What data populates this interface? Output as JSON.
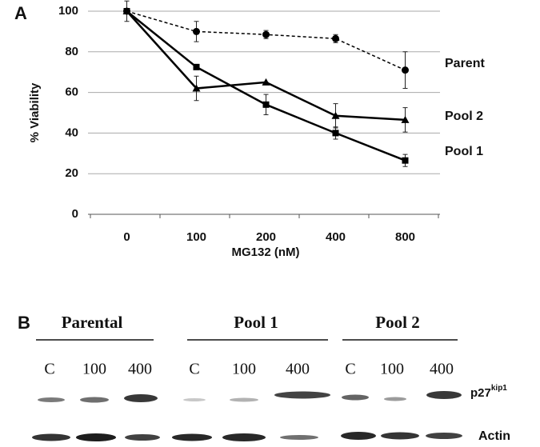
{
  "chart_data": {
    "type": "line",
    "panel": "A",
    "ylabel": "% Viability",
    "xlabel": "MG132 (nM)",
    "categories": [
      "0",
      "100",
      "200",
      "400",
      "800"
    ],
    "ylim": [
      0,
      100
    ],
    "yticks": [
      0,
      20,
      40,
      60,
      80,
      100
    ],
    "grid": true,
    "series": [
      {
        "name": "Parent",
        "color": "#000000",
        "marker": "circle",
        "dashed": true,
        "values": [
          100,
          90,
          88.5,
          86.5,
          71
        ],
        "errors": [
          5,
          5,
          2,
          2,
          9
        ]
      },
      {
        "name": "Pool 2",
        "color": "#000000",
        "marker": "triangle",
        "dashed": false,
        "values": [
          100,
          62,
          65,
          48.5,
          46.5
        ],
        "errors": [
          0,
          6,
          0,
          6,
          6
        ]
      },
      {
        "name": "Pool 1",
        "color": "#000000",
        "marker": "square",
        "dashed": false,
        "values": [
          100,
          72.5,
          54,
          40,
          26.5
        ],
        "errors": [
          0,
          0,
          5,
          3,
          3
        ]
      }
    ]
  },
  "blot": {
    "panel": "B",
    "groups": [
      "Parental",
      "Pool 1",
      "Pool 2"
    ],
    "lanes": [
      "C",
      "100",
      "400",
      "C",
      "100",
      "400",
      "C",
      "100",
      "400"
    ],
    "p27_label": "p27",
    "p27_sup": "kip1",
    "actin_label": "Actin"
  }
}
